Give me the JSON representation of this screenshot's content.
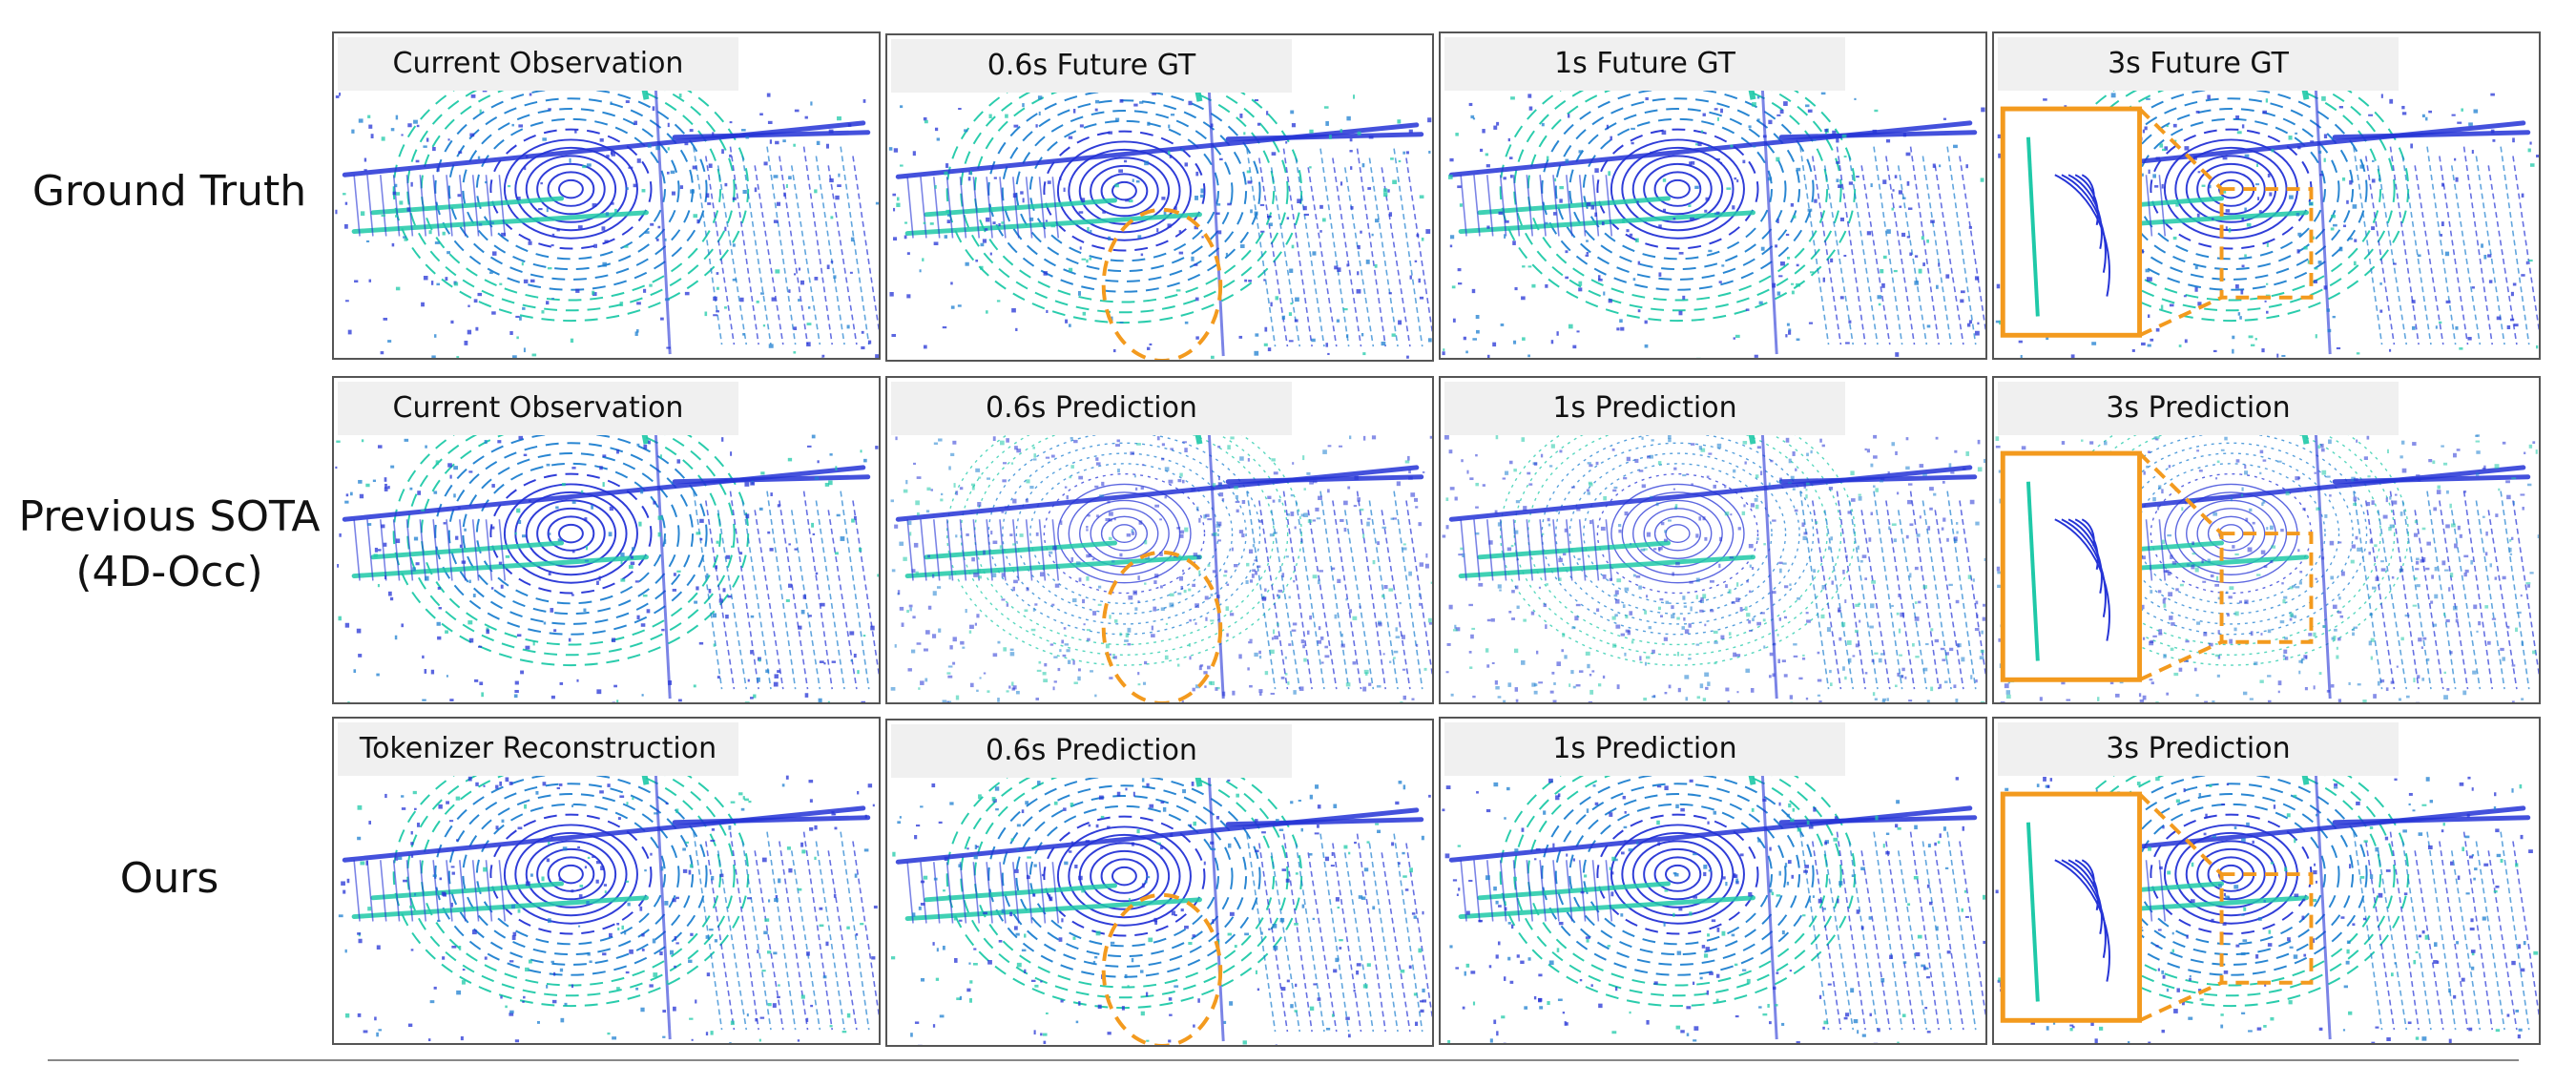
{
  "rows": [
    {
      "label_lines": [
        "Ground Truth"
      ],
      "panels": [
        "Current Observation",
        "0.6s Future GT",
        "1s Future GT",
        "3s Future GT"
      ]
    },
    {
      "label_lines": [
        "Previous SOTA",
        "(4D-Occ)"
      ],
      "panels": [
        "Current Observation",
        "0.6s Prediction",
        "1s Prediction",
        "3s Prediction"
      ]
    },
    {
      "label_lines": [
        "Ours"
      ],
      "panels": [
        "Tokenizer Reconstruction",
        "0.6s Prediction",
        "1s Prediction",
        "3s Prediction"
      ]
    }
  ],
  "colors": {
    "scan_dark": "#2433d6",
    "scan_mid": "#1e7fd0",
    "scan_light": "#1fc9a8",
    "highlight": "#f39a1e"
  }
}
